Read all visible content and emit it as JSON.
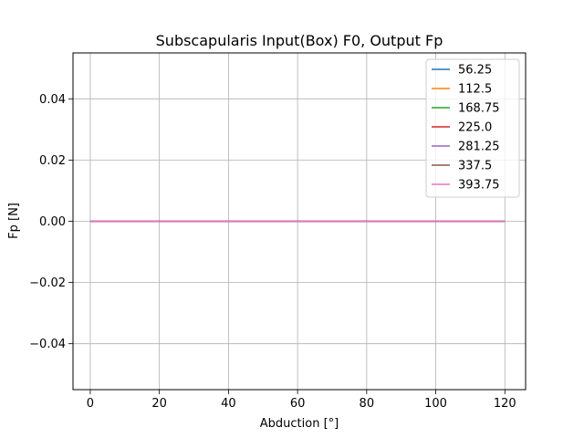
{
  "chart_data": {
    "type": "line",
    "title": "Subscapularis Input(Box) F0, Output Fp",
    "xlabel": "Abduction [°]",
    "ylabel": "Fp [N]",
    "xlim": [
      -5,
      126
    ],
    "ylim": [
      -0.055,
      0.055
    ],
    "xticks": [
      0,
      20,
      40,
      60,
      80,
      100,
      120
    ],
    "yticks": [
      -0.04,
      -0.02,
      0.0,
      0.02,
      0.04
    ],
    "xtick_labels": [
      "0",
      "20",
      "40",
      "60",
      "80",
      "100",
      "120"
    ],
    "ytick_labels": [
      "−0.04",
      "−0.02",
      "0.00",
      "0.02",
      "0.04"
    ],
    "grid": true,
    "legend_position": "top-right",
    "x": [
      0,
      120
    ],
    "series": [
      {
        "name": "56.25",
        "color": "#1f77b4",
        "values": [
          0,
          0
        ]
      },
      {
        "name": "112.5",
        "color": "#ff7f0e",
        "values": [
          0,
          0
        ]
      },
      {
        "name": "168.75",
        "color": "#2ca02c",
        "values": [
          0,
          0
        ]
      },
      {
        "name": "225.0",
        "color": "#d62728",
        "values": [
          0,
          0
        ]
      },
      {
        "name": "281.25",
        "color": "#9467bd",
        "values": [
          0,
          0
        ]
      },
      {
        "name": "337.5",
        "color": "#8c564b",
        "values": [
          0,
          0
        ]
      },
      {
        "name": "393.75",
        "color": "#e377c2",
        "values": [
          0,
          0
        ]
      }
    ]
  }
}
